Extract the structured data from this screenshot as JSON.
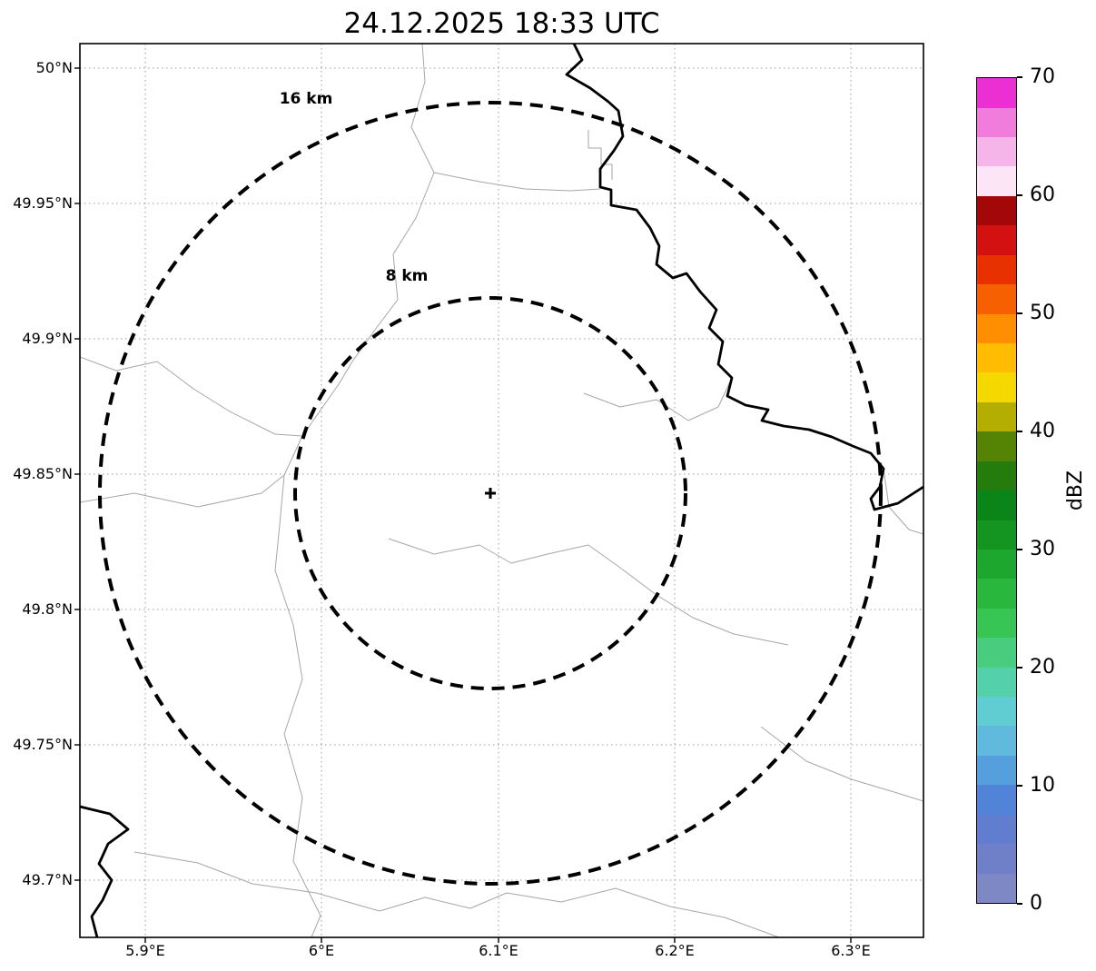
{
  "title": "24.12.2025 18:33 UTC",
  "map": {
    "range_rings": [
      {
        "label": "16 km",
        "radius_km": 16
      },
      {
        "label": "8 km",
        "radius_km": 8
      }
    ],
    "center_marker": "+",
    "x_axis": {
      "ticks": [
        "5.9°E",
        "6°E",
        "6.1°E",
        "6.2°E",
        "6.3°E"
      ]
    },
    "y_axis": {
      "ticks": [
        "50°N",
        "49.95°N",
        "49.9°N",
        "49.85°N",
        "49.8°N",
        "49.75°N",
        "49.7°N"
      ]
    }
  },
  "colorbar": {
    "label": "dBZ",
    "min": 0,
    "max": 70,
    "ticks": [
      0,
      10,
      20,
      30,
      40,
      50,
      60,
      70
    ],
    "colors_bottom_to_top": [
      "#7e88c4",
      "#7080c8",
      "#607dd0",
      "#5184d8",
      "#549fdc",
      "#60badd",
      "#5fcdd1",
      "#54d1ab",
      "#48cd7e",
      "#37c554",
      "#29b83d",
      "#1ea72e",
      "#149522",
      "#0b8518",
      "#237c0c",
      "#558405",
      "#b4ae02",
      "#f5d800",
      "#ffbc00",
      "#ff8f00",
      "#f66000",
      "#e93000",
      "#d31111",
      "#a30707",
      "#fbe5f6",
      "#f6b5e9",
      "#f17cdc",
      "#eb2fd3"
    ]
  },
  "chart_data": {
    "type": "map",
    "title": "24.12.2025 18:33 UTC",
    "x_ticks": [
      "5.9°E",
      "6°E",
      "6.1°E",
      "6.2°E",
      "6.3°E"
    ],
    "y_ticks": [
      "50°N",
      "49.95°N",
      "49.9°N",
      "49.85°N",
      "49.8°N",
      "49.75°N",
      "49.7°N"
    ],
    "range_rings_km": [
      16,
      8
    ],
    "range_ring_labels": [
      "16 km",
      "8 km"
    ],
    "colorbar_label": "dBZ",
    "colorbar_range": [
      0,
      70
    ],
    "colorbar_ticks": [
      0,
      10,
      20,
      30,
      40,
      50,
      60,
      70
    ],
    "grid": true,
    "legend_position": "right-colorbar"
  }
}
